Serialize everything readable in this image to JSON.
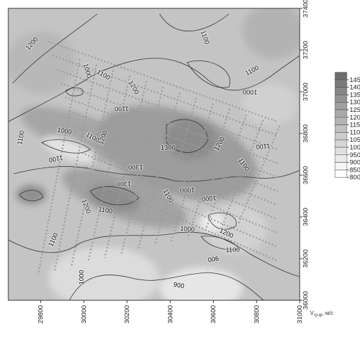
{
  "chart_data": {
    "type": "contour map",
    "x_ticks": [
      "29800",
      "30000",
      "30200",
      "30400",
      "30600",
      "30800",
      "31000"
    ],
    "y_ticks": [
      "36000",
      "36200",
      "36400",
      "36600",
      "36800",
      "37000",
      "37200",
      "37400"
    ],
    "xlim": [
      29650,
      31000
    ],
    "ylim": [
      36000,
      37400
    ],
    "contour_labels": [
      {
        "text": "1200",
        "x": 29760,
        "y": 37230,
        "angle": -48
      },
      {
        "text": "1100",
        "x": 30560,
        "y": 37260,
        "angle": 70
      },
      {
        "text": "1100",
        "x": 30780,
        "y": 37100,
        "angle": -28
      },
      {
        "text": "1000",
        "x": 30770,
        "y": 37000,
        "angle": -178
      },
      {
        "text": "1000",
        "x": 30015,
        "y": 37100,
        "angle": 75
      },
      {
        "text": "1100",
        "x": 30090,
        "y": 37080,
        "angle": 30
      },
      {
        "text": "1200",
        "x": 30230,
        "y": 37020,
        "angle": 60
      },
      {
        "text": "1100",
        "x": 30175,
        "y": 36920,
        "angle": 180
      },
      {
        "text": "1100",
        "x": 29710,
        "y": 36780,
        "angle": -80
      },
      {
        "text": "1000",
        "x": 29910,
        "y": 36810,
        "angle": 10
      },
      {
        "text": "1100",
        "x": 30040,
        "y": 36780,
        "angle": 30
      },
      {
        "text": "1200",
        "x": 30090,
        "y": 36780,
        "angle": -70
      },
      {
        "text": "1100",
        "x": 29870,
        "y": 36680,
        "angle": 170
      },
      {
        "text": "1300",
        "x": 30390,
        "y": 36730,
        "angle": 0
      },
      {
        "text": "1300",
        "x": 30240,
        "y": 36640,
        "angle": 180
      },
      {
        "text": "1200",
        "x": 30630,
        "y": 36750,
        "angle": -60
      },
      {
        "text": "1100",
        "x": 30830,
        "y": 36740,
        "angle": 175
      },
      {
        "text": "1100",
        "x": 30740,
        "y": 36650,
        "angle": 55
      },
      {
        "text": "1300",
        "x": 30185,
        "y": 36560,
        "angle": 180
      },
      {
        "text": "1200",
        "x": 30010,
        "y": 36450,
        "angle": 70
      },
      {
        "text": "1100",
        "x": 30100,
        "y": 36430,
        "angle": 10
      },
      {
        "text": "1100",
        "x": 30390,
        "y": 36500,
        "angle": 60
      },
      {
        "text": "1000",
        "x": 30480,
        "y": 36530,
        "angle": 180
      },
      {
        "text": "1000",
        "x": 30580,
        "y": 36490,
        "angle": 175
      },
      {
        "text": "1100",
        "x": 29860,
        "y": 36290,
        "angle": -65
      },
      {
        "text": "1000",
        "x": 30480,
        "y": 36340,
        "angle": 5
      },
      {
        "text": "1200",
        "x": 30660,
        "y": 36320,
        "angle": 25
      },
      {
        "text": "1100",
        "x": 30690,
        "y": 36240,
        "angle": 0
      },
      {
        "text": "900",
        "x": 30600,
        "y": 36200,
        "angle": 170
      },
      {
        "text": "1000",
        "x": 29990,
        "y": 36110,
        "angle": -90
      },
      {
        "text": "900",
        "x": 30440,
        "y": 36070,
        "angle": 10
      }
    ]
  },
  "legend": {
    "labels": [
      "145",
      "140",
      "135",
      "130",
      "125",
      "120",
      "115",
      "110",
      "105",
      "100",
      "950",
      "900",
      "850",
      "800"
    ],
    "unit_prefix": "V",
    "unit_sub": "гр.ф",
    "unit_suffix": ", м/с",
    "colors": [
      "#6e6e6e",
      "#7b7b7b",
      "#878787",
      "#939393",
      "#9f9f9f",
      "#aaaaaa",
      "#b5b5b5",
      "#c0c0c0",
      "#cbcbcb",
      "#d6d6d6",
      "#e0e0e0",
      "#ebebeb",
      "#f5f5f5",
      "#ffffff"
    ]
  }
}
